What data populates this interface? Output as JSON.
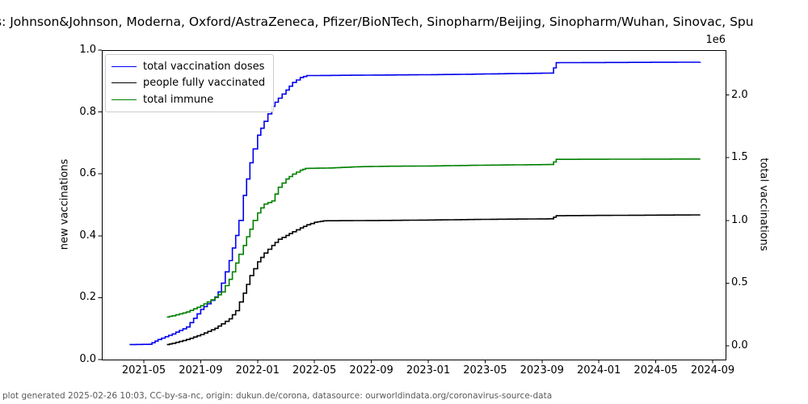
{
  "title": "s: Johnson&Johnson, Moderna, Oxford/AstraZeneca, Pfizer/BioNTech, Sinopharm/Beijing, Sinopharm/Wuhan, Sinovac, Spu",
  "caption": "plot generated 2025-02-26 10:03, CC-by-sa-nc, origin: dukun.de/corona, datasource: ourworldindata.org/coronavirus-source-data",
  "axes": {
    "left_label": "new vaccinations",
    "right_label": "total vaccinations",
    "right_offset_text": "1e6",
    "x_tick_labels": [
      "2021-05",
      "2021-09",
      "2022-01",
      "2022-05",
      "2022-09",
      "2023-01",
      "2023-05",
      "2023-09",
      "2024-01",
      "2024-05",
      "2024-09"
    ],
    "left_tick_labels": [
      "0.0",
      "0.2",
      "0.4",
      "0.6",
      "0.8",
      "1.0"
    ],
    "right_tick_labels": [
      "0.0",
      "0.5",
      "1.0",
      "1.5",
      "2.0"
    ]
  },
  "chart_data": {
    "type": "line",
    "title": "vaccine type list (clipped): Johnson&Johnson, Moderna, Oxford/AstraZeneca, Pfizer/BioNTech, Sinopharm/Beijing, Sinopharm/Wuhan, Sinovac, Spu",
    "xlabel": "",
    "ylabel_left": "new vaccinations",
    "ylabel_right": "total vaccinations",
    "ylim_left": [
      0.0,
      1.0
    ],
    "right_axis_scale": "1e6",
    "right_axis_ticks": [
      0.0,
      0.5,
      1.0,
      1.5,
      2.0
    ],
    "x_range": [
      "2021-02-01",
      "2024-10-01"
    ],
    "grid": false,
    "legend_position": "upper left",
    "line_style": "steps-post",
    "series": [
      {
        "name": "total vaccination doses",
        "color": "#0000ee",
        "unit": "doses (1e6)",
        "points": [
          [
            "2021-04-01",
            0.01
          ],
          [
            "2021-05-12",
            0.012
          ],
          [
            "2021-06-01",
            0.05
          ],
          [
            "2021-07-01",
            0.095
          ],
          [
            "2021-08-01",
            0.15
          ],
          [
            "2021-09-01",
            0.29
          ],
          [
            "2021-09-15",
            0.335
          ],
          [
            "2021-10-01",
            0.39
          ],
          [
            "2021-10-08",
            0.43
          ],
          [
            "2021-10-15",
            0.5
          ],
          [
            "2021-11-01",
            0.68
          ],
          [
            "2021-11-08",
            0.78
          ],
          [
            "2021-11-15",
            0.88
          ],
          [
            "2021-11-22",
            1.0
          ],
          [
            "2021-12-01",
            1.2
          ],
          [
            "2021-12-08",
            1.33
          ],
          [
            "2021-12-15",
            1.46
          ],
          [
            "2021-12-22",
            1.57
          ],
          [
            "2022-01-01",
            1.68
          ],
          [
            "2022-01-15",
            1.79
          ],
          [
            "2022-02-01",
            1.91
          ],
          [
            "2022-02-15",
            1.975
          ],
          [
            "2022-03-01",
            2.04
          ],
          [
            "2022-03-15",
            2.1
          ],
          [
            "2022-04-01",
            2.14
          ],
          [
            "2022-04-15",
            2.155
          ],
          [
            "2022-08-01",
            2.158
          ],
          [
            "2023-01-01",
            2.162
          ],
          [
            "2023-03-15",
            2.165
          ],
          [
            "2023-05-01",
            2.168
          ],
          [
            "2023-09-20",
            2.175
          ],
          [
            "2023-10-01",
            2.258
          ],
          [
            "2024-08-05",
            2.262
          ]
        ]
      },
      {
        "name": "people fully vaccinated",
        "color": "#000000",
        "unit": "people (1e6)",
        "points": [
          [
            "2021-06-20",
            0.01
          ],
          [
            "2021-07-01",
            0.02
          ],
          [
            "2021-08-01",
            0.05
          ],
          [
            "2021-09-01",
            0.09
          ],
          [
            "2021-10-01",
            0.14
          ],
          [
            "2021-10-15",
            0.175
          ],
          [
            "2021-11-01",
            0.215
          ],
          [
            "2021-11-15",
            0.28
          ],
          [
            "2021-12-01",
            0.42
          ],
          [
            "2021-12-08",
            0.49
          ],
          [
            "2021-12-15",
            0.56
          ],
          [
            "2022-01-01",
            0.67
          ],
          [
            "2022-01-15",
            0.74
          ],
          [
            "2022-02-01",
            0.8
          ],
          [
            "2022-02-15",
            0.85
          ],
          [
            "2022-03-01",
            0.88
          ],
          [
            "2022-03-15",
            0.91
          ],
          [
            "2022-04-01",
            0.94
          ],
          [
            "2022-04-15",
            0.965
          ],
          [
            "2022-05-01",
            0.985
          ],
          [
            "2022-05-20",
            0.997
          ],
          [
            "2022-10-01",
            1.0
          ],
          [
            "2023-01-01",
            1.003
          ],
          [
            "2023-04-15",
            1.008
          ],
          [
            "2023-09-20",
            1.013
          ],
          [
            "2023-10-01",
            1.038
          ],
          [
            "2024-08-05",
            1.044
          ]
        ]
      },
      {
        "name": "total immune",
        "color": "#008000",
        "unit": "people (1e6)",
        "points": [
          [
            "2021-06-20",
            0.23
          ],
          [
            "2021-07-01",
            0.24
          ],
          [
            "2021-08-01",
            0.27
          ],
          [
            "2021-09-01",
            0.32
          ],
          [
            "2021-09-15",
            0.35
          ],
          [
            "2021-10-01",
            0.385
          ],
          [
            "2021-10-15",
            0.43
          ],
          [
            "2021-11-01",
            0.53
          ],
          [
            "2021-11-08",
            0.59
          ],
          [
            "2021-11-15",
            0.66
          ],
          [
            "2021-11-22",
            0.73
          ],
          [
            "2021-12-01",
            0.8
          ],
          [
            "2021-12-08",
            0.87
          ],
          [
            "2021-12-15",
            0.93
          ],
          [
            "2021-12-22",
            1.0
          ],
          [
            "2022-01-01",
            1.06
          ],
          [
            "2022-01-08",
            1.1
          ],
          [
            "2022-01-15",
            1.13
          ],
          [
            "2022-02-01",
            1.155
          ],
          [
            "2022-02-15",
            1.265
          ],
          [
            "2022-03-01",
            1.33
          ],
          [
            "2022-03-15",
            1.37
          ],
          [
            "2022-04-01",
            1.4
          ],
          [
            "2022-04-12",
            1.415
          ],
          [
            "2022-06-01",
            1.418
          ],
          [
            "2022-08-01",
            1.428
          ],
          [
            "2022-10-01",
            1.432
          ],
          [
            "2023-01-01",
            1.434
          ],
          [
            "2023-04-15",
            1.44
          ],
          [
            "2023-09-20",
            1.446
          ],
          [
            "2023-10-01",
            1.487
          ],
          [
            "2024-08-05",
            1.49
          ]
        ]
      }
    ]
  }
}
